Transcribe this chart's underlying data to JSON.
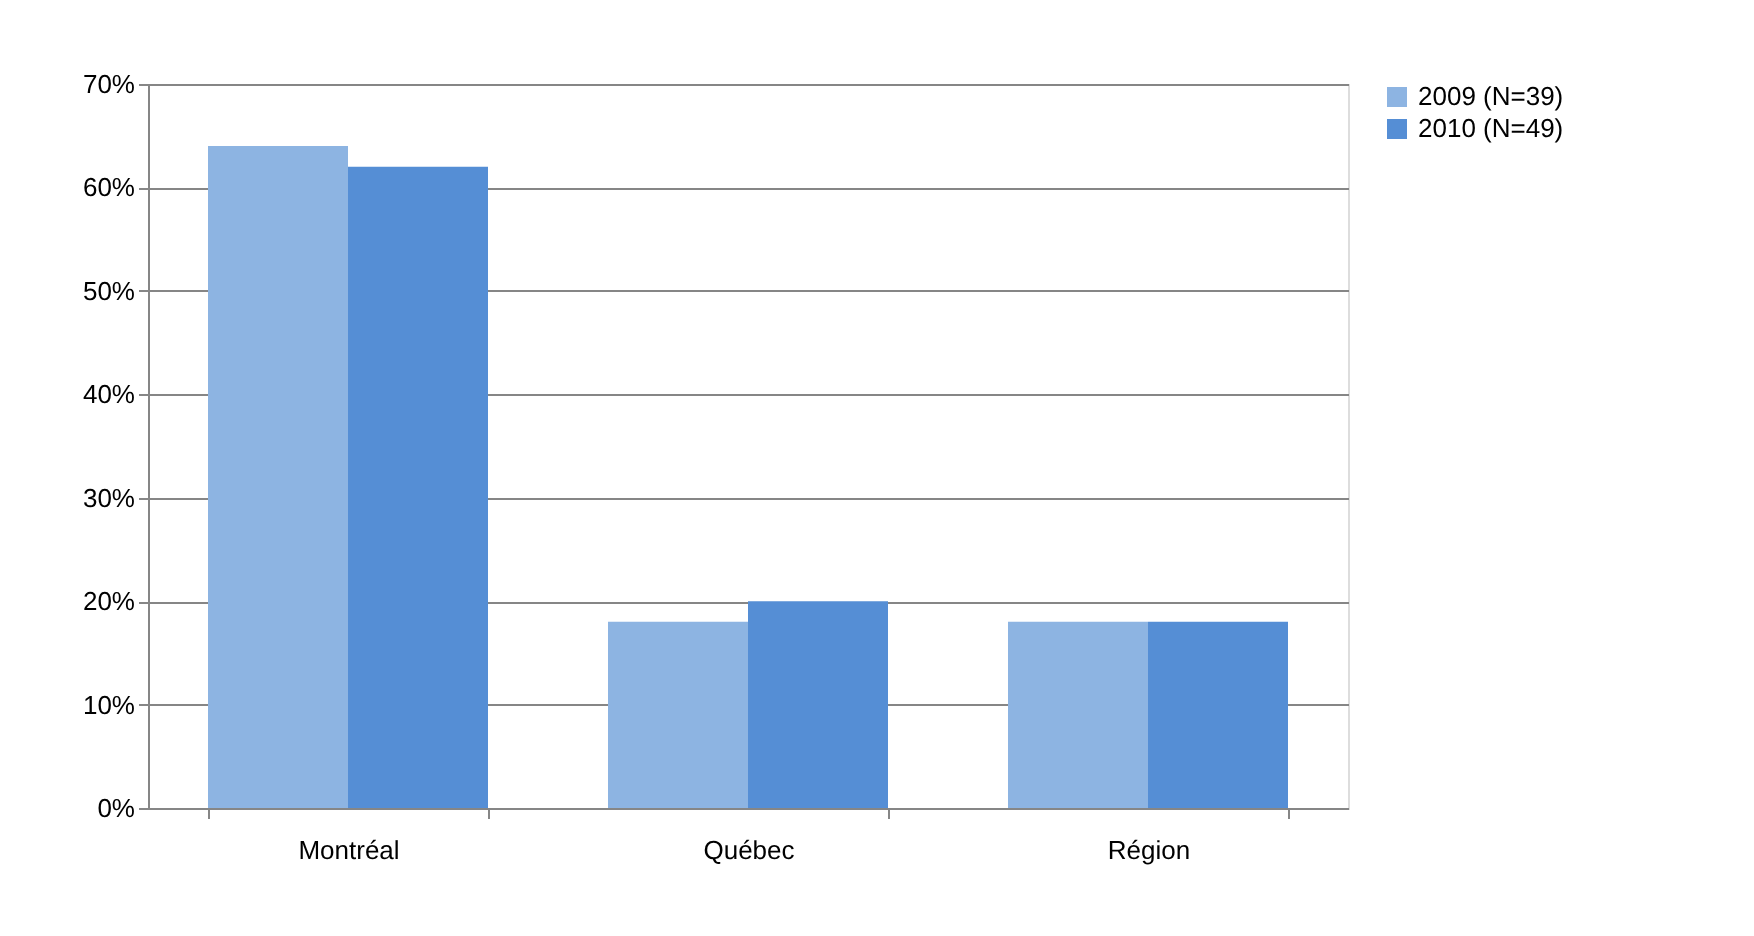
{
  "chart_data": {
    "type": "bar",
    "categories": [
      "Montréal",
      "Québec",
      "Région"
    ],
    "series": [
      {
        "name": "2009 (N=39)",
        "color": "#8db4e2",
        "values": [
          64,
          18,
          18
        ]
      },
      {
        "name": "2010 (N=49)",
        "color": "#558ed5",
        "values": [
          62,
          20,
          18
        ]
      }
    ],
    "ylim": [
      0,
      70
    ],
    "yticks": [
      {
        "value": 0,
        "label": "0%"
      },
      {
        "value": 10,
        "label": "10%"
      },
      {
        "value": 20,
        "label": "20%"
      },
      {
        "value": 30,
        "label": "30%"
      },
      {
        "value": 40,
        "label": "40%"
      },
      {
        "value": 50,
        "label": "50%"
      },
      {
        "value": 60,
        "label": "60%"
      },
      {
        "value": 70,
        "label": "70%"
      }
    ],
    "grid": "y",
    "legend": "right"
  }
}
